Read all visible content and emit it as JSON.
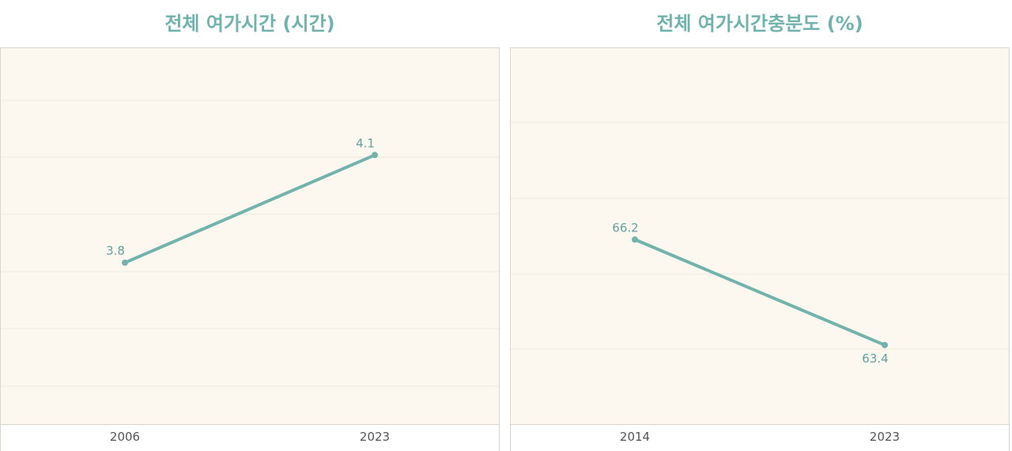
{
  "chart_data": [
    {
      "type": "line",
      "title": "전체 여가시간 (시간)",
      "x": [
        "2006",
        "2023"
      ],
      "values": [
        3.8,
        4.1
      ],
      "labels": [
        "3.8",
        "4.1"
      ],
      "ylim": [
        3.35,
        4.4
      ],
      "grid": true,
      "color": "#72b4ad"
    },
    {
      "type": "line",
      "title": "전체 여가시간충분도 (%)",
      "x": [
        "2014",
        "2023"
      ],
      "values": [
        66.2,
        63.4
      ],
      "labels": [
        "66.2",
        "63.4"
      ],
      "ylim": [
        61.3,
        71.3
      ],
      "grid": true,
      "color": "#72b4ad"
    }
  ],
  "colors": {
    "plot_background": "#fcf8f0",
    "line": "#72b4ad",
    "title": "#6fb3ad",
    "grid": "#f0eadf",
    "border": "#d9d4cc"
  }
}
